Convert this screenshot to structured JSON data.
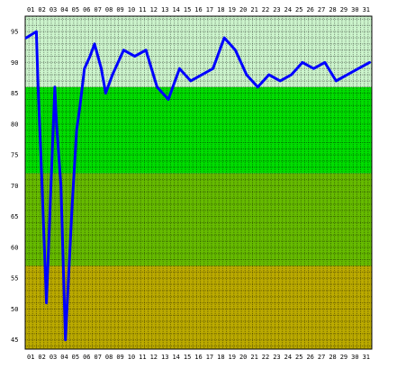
{
  "chart_data": {
    "type": "line",
    "title": "",
    "xlabel": "",
    "ylabel": "",
    "x_tick_labels": [
      "01",
      "02",
      "03",
      "04",
      "05",
      "06",
      "07",
      "08",
      "09",
      "10",
      "11",
      "12",
      "13",
      "14",
      "15",
      "16",
      "17",
      "18",
      "19",
      "20",
      "21",
      "22",
      "23",
      "24",
      "25",
      "26",
      "27",
      "28",
      "29",
      "30",
      "31"
    ],
    "y_tick_labels": [
      "95",
      "90",
      "85",
      "80",
      "75",
      "70",
      "65",
      "60",
      "55",
      "50",
      "45"
    ],
    "y_ticks": [
      95,
      90,
      85,
      80,
      75,
      70,
      65,
      60,
      55,
      50,
      45
    ],
    "ylim": [
      43.5,
      97.5
    ],
    "x": [
      0.1,
      1.0,
      1.15,
      1.4,
      1.9,
      2.3,
      2.65,
      2.8,
      3.2,
      3.6,
      4.2,
      4.6,
      4.9,
      5.3,
      5.8,
      6.2,
      6.8,
      7.2,
      7.8,
      8.8,
      9.8,
      10.8,
      11.8,
      12.8,
      13.8,
      14.8,
      15.8,
      16.8,
      17.8,
      18.8,
      19.8,
      20.8,
      21.8,
      22.8,
      23.8,
      24.8,
      25.8,
      26.8,
      27.8,
      28.8,
      29.8,
      30.8
    ],
    "series": [
      {
        "values": [
          94,
          95,
          86,
          75,
          51,
          70,
          86,
          80,
          70,
          45,
          67,
          79,
          83,
          89,
          91,
          93,
          89,
          85,
          88,
          92,
          91,
          92,
          86,
          84,
          89,
          87,
          88,
          89,
          94,
          92,
          88,
          86,
          88,
          87,
          88,
          90,
          89,
          90,
          87,
          88,
          89,
          90
        ],
        "color": "#0000ff"
      }
    ],
    "bands": [
      {
        "from": 86,
        "to": 97.5,
        "color": "#ccf4cc"
      },
      {
        "from": 72,
        "to": 86,
        "color": "#00dd00"
      },
      {
        "from": 57,
        "to": 72,
        "color": "#66bb00"
      },
      {
        "from": 43.5,
        "to": 57,
        "color": "#bbaa00"
      }
    ],
    "grid": true,
    "grid_color": "#000000",
    "grid_opacity": 0.4,
    "legend": "none"
  }
}
